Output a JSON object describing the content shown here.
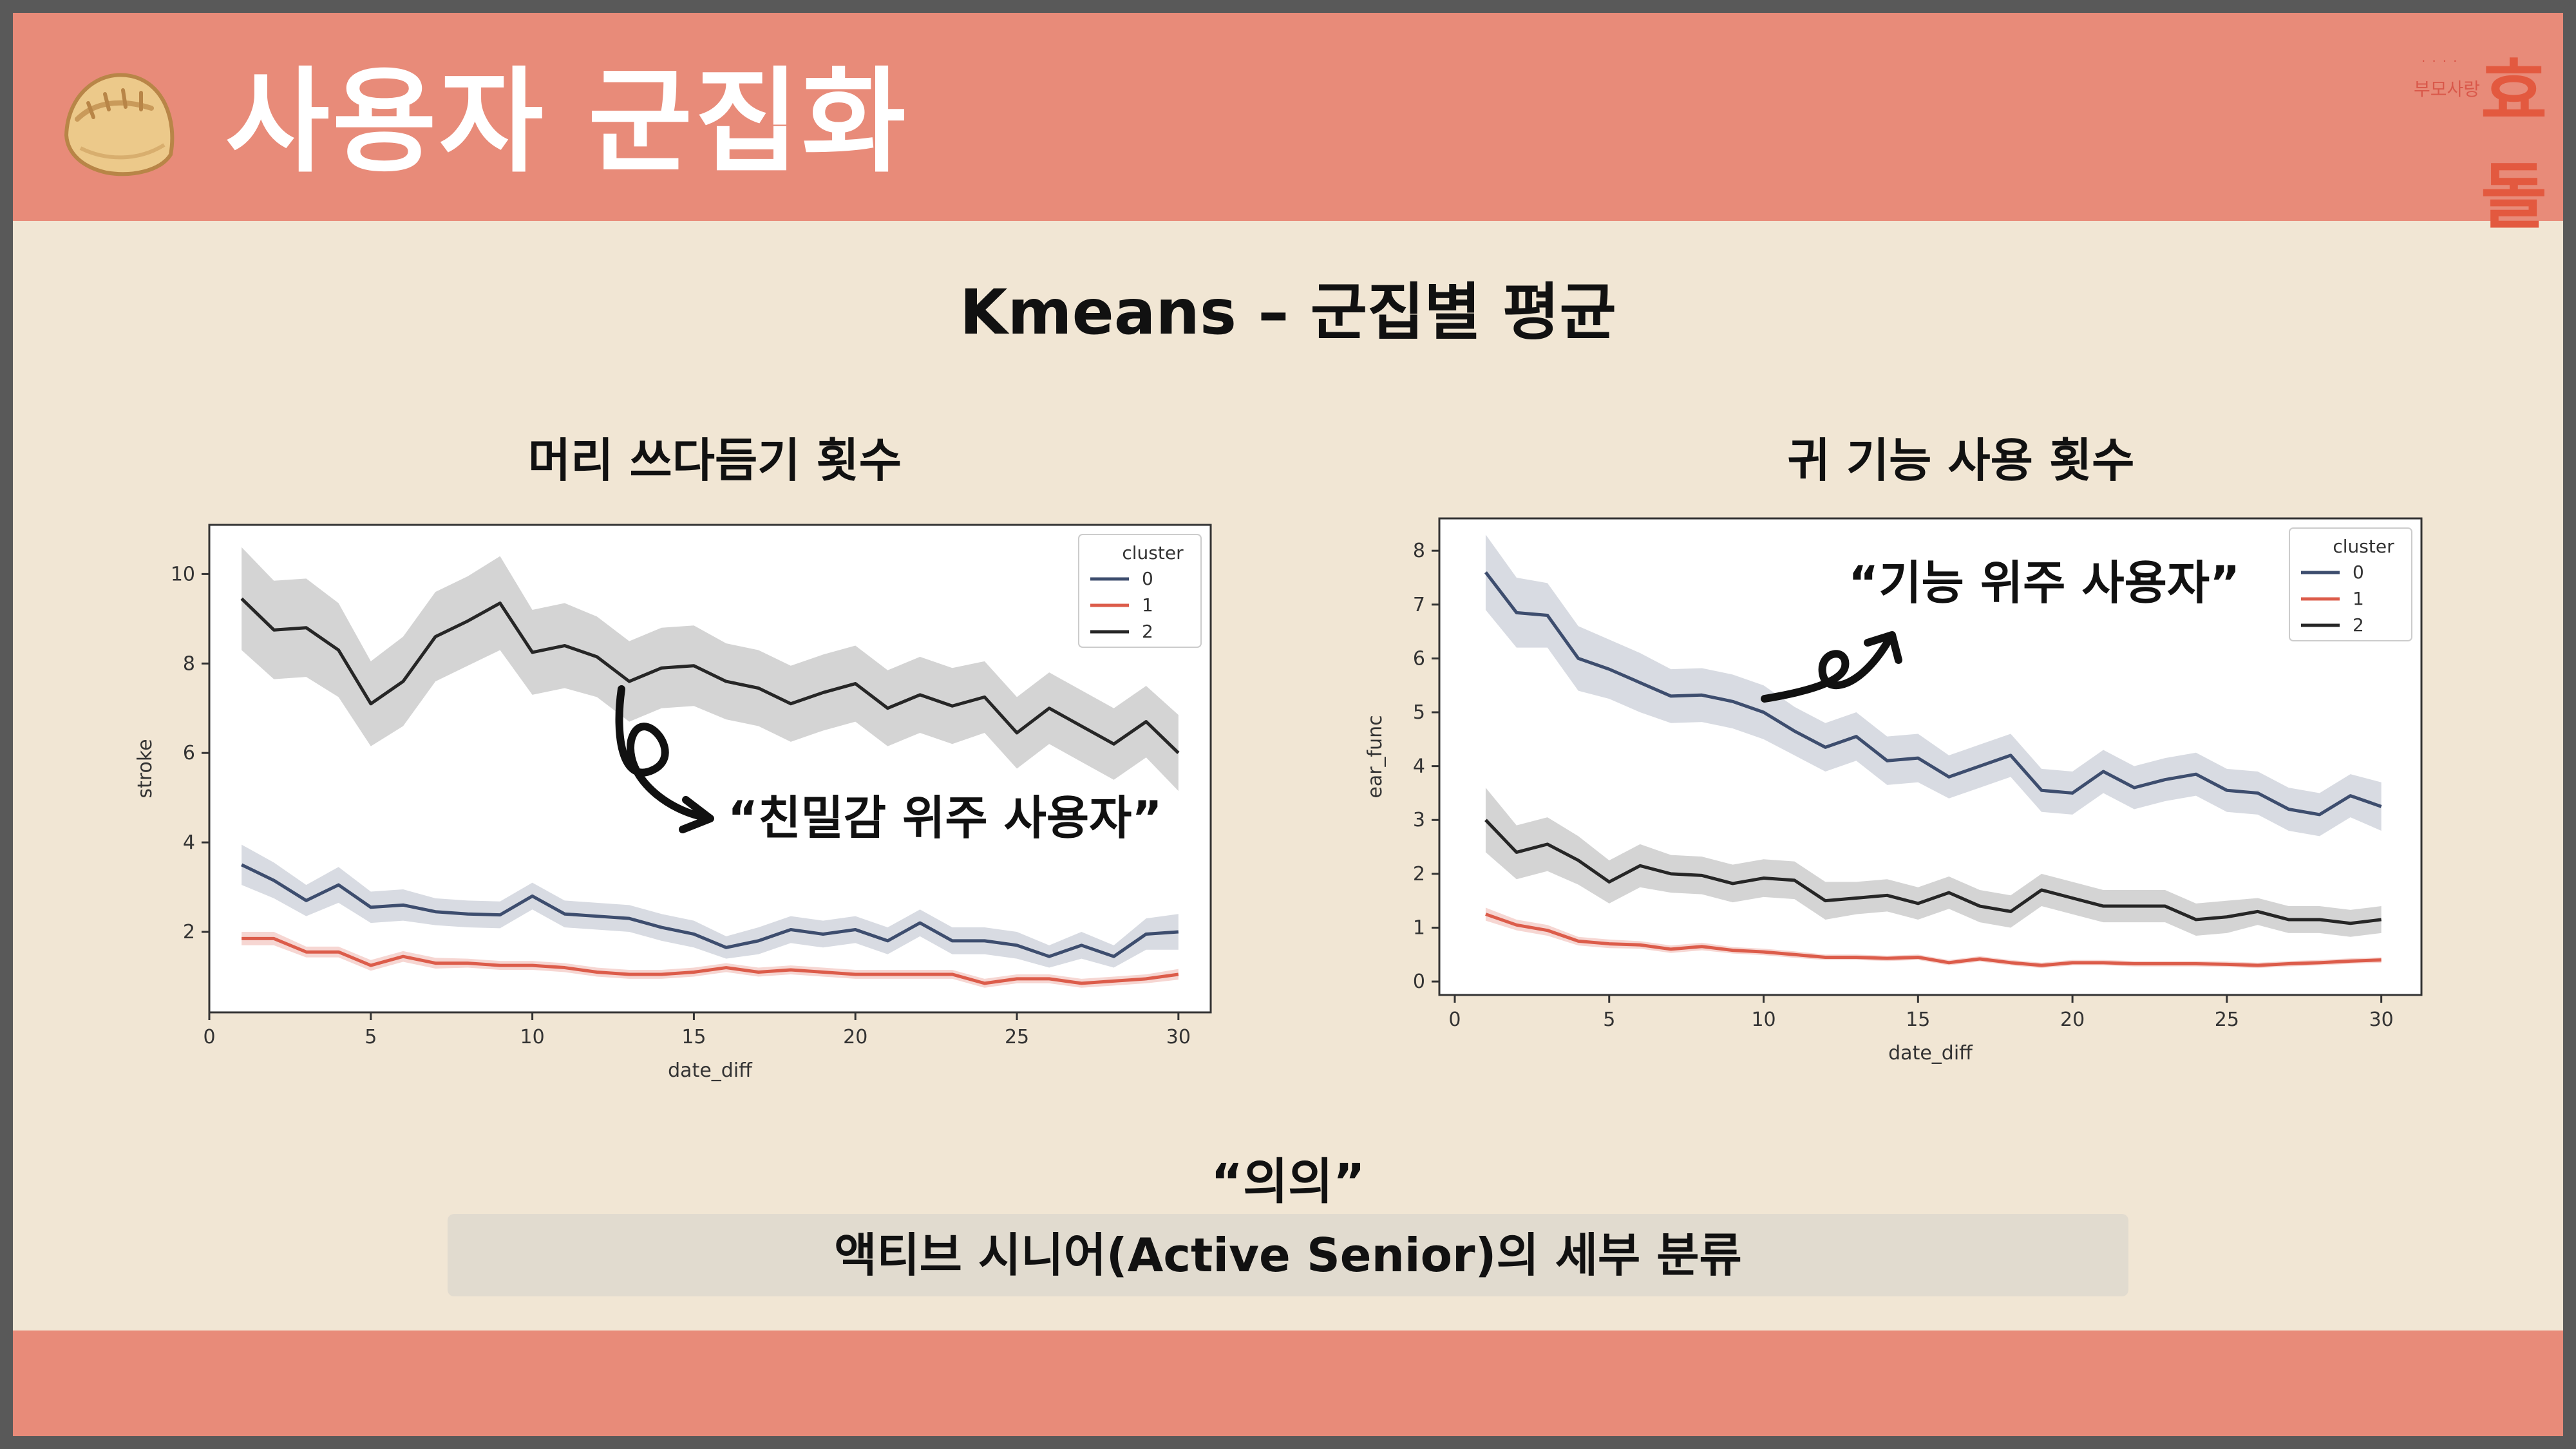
{
  "header": {
    "title": "사용자 군집화",
    "logo": {
      "small_text": "부모사랑",
      "dots": "····",
      "big_text": "효돌"
    }
  },
  "section_title": "Kmeans – 군집별 평균",
  "charts": [
    {
      "heading": "머리 쓰다듬기 횟수",
      "annotation": "“친밀감 위주 사용자”"
    },
    {
      "heading": "귀 기능 사용 횟수",
      "annotation": "“기능 위주 사용자”"
    }
  ],
  "meaning_label": "“의의”",
  "conclusion": "액티브 시니어(Active Senior)의 세부 분류",
  "colors": {
    "header": "#e88b79",
    "background": "#f1e6d4",
    "cluster_0": "#3d4d6e",
    "cluster_1": "#dc5c4a",
    "cluster_2": "#262626"
  },
  "chart_data": [
    {
      "type": "line",
      "xlabel": "date_diff",
      "ylabel": "stroke",
      "xlim": [
        0,
        31
      ],
      "ylim": [
        0.2,
        11.1
      ],
      "xticks": [
        0,
        5,
        10,
        15,
        20,
        25,
        30
      ],
      "yticks": [
        2,
        4,
        6,
        8,
        10
      ],
      "legend": {
        "title": "cluster",
        "position": "top-right"
      },
      "x": [
        1,
        2,
        3,
        4,
        5,
        6,
        7,
        8,
        9,
        10,
        11,
        12,
        13,
        14,
        15,
        16,
        17,
        18,
        19,
        20,
        21,
        22,
        23,
        24,
        25,
        26,
        27,
        28,
        29,
        30
      ],
      "series": [
        {
          "name": "0",
          "values": [
            3.5,
            3.15,
            2.7,
            3.05,
            2.55,
            2.6,
            2.45,
            2.4,
            2.38,
            2.8,
            2.4,
            2.35,
            2.3,
            2.1,
            1.95,
            1.65,
            1.8,
            2.05,
            1.95,
            2.05,
            1.8,
            2.2,
            1.8,
            1.8,
            1.7,
            1.45,
            1.7,
            1.45,
            1.95,
            2.0
          ],
          "band": [
            0.45,
            0.4,
            0.35,
            0.4,
            0.35,
            0.35,
            0.3,
            0.3,
            0.3,
            0.3,
            0.3,
            0.3,
            0.3,
            0.3,
            0.3,
            0.25,
            0.3,
            0.3,
            0.3,
            0.3,
            0.3,
            0.3,
            0.3,
            0.3,
            0.3,
            0.25,
            0.3,
            0.25,
            0.35,
            0.4
          ]
        },
        {
          "name": "1",
          "values": [
            1.85,
            1.85,
            1.55,
            1.55,
            1.25,
            1.45,
            1.3,
            1.3,
            1.25,
            1.25,
            1.2,
            1.1,
            1.05,
            1.05,
            1.1,
            1.2,
            1.1,
            1.15,
            1.1,
            1.05,
            1.05,
            1.05,
            1.05,
            0.85,
            0.95,
            0.95,
            0.85,
            0.9,
            0.95,
            1.05
          ],
          "band": [
            0.15,
            0.15,
            0.12,
            0.12,
            0.12,
            0.12,
            0.12,
            0.1,
            0.1,
            0.1,
            0.1,
            0.1,
            0.1,
            0.1,
            0.1,
            0.1,
            0.1,
            0.1,
            0.1,
            0.1,
            0.1,
            0.1,
            0.1,
            0.1,
            0.1,
            0.1,
            0.1,
            0.1,
            0.1,
            0.12
          ]
        },
        {
          "name": "2",
          "values": [
            9.45,
            8.75,
            8.8,
            8.3,
            7.1,
            7.6,
            8.6,
            8.95,
            9.35,
            8.25,
            8.4,
            8.15,
            7.6,
            7.9,
            7.95,
            7.6,
            7.45,
            7.1,
            7.35,
            7.55,
            7.0,
            7.3,
            7.05,
            7.25,
            6.45,
            7.0,
            6.6,
            6.2,
            6.7,
            6.0
          ],
          "band": [
            1.15,
            1.1,
            1.1,
            1.05,
            0.95,
            1.0,
            1.0,
            1.0,
            1.05,
            0.95,
            0.95,
            0.9,
            0.9,
            0.9,
            0.9,
            0.85,
            0.85,
            0.85,
            0.85,
            0.85,
            0.85,
            0.85,
            0.85,
            0.8,
            0.8,
            0.8,
            0.8,
            0.8,
            0.8,
            0.85
          ]
        }
      ]
    },
    {
      "type": "line",
      "xlabel": "date_diff",
      "ylabel": "ear_func",
      "xlim": [
        -0.5,
        31.3
      ],
      "ylim": [
        -0.25,
        8.6
      ],
      "xticks": [
        0,
        5,
        10,
        15,
        20,
        25,
        30
      ],
      "yticks": [
        0,
        1,
        2,
        3,
        4,
        5,
        6,
        7,
        8
      ],
      "legend": {
        "title": "cluster",
        "position": "top-right"
      },
      "x": [
        1,
        2,
        3,
        4,
        5,
        6,
        7,
        8,
        9,
        10,
        11,
        12,
        13,
        14,
        15,
        16,
        17,
        18,
        19,
        20,
        21,
        22,
        23,
        24,
        25,
        26,
        27,
        28,
        29,
        30
      ],
      "series": [
        {
          "name": "0",
          "values": [
            7.6,
            6.85,
            6.8,
            6.0,
            5.8,
            5.55,
            5.3,
            5.32,
            5.2,
            5.0,
            4.65,
            4.35,
            4.55,
            4.1,
            4.15,
            3.8,
            4.0,
            4.2,
            3.55,
            3.5,
            3.9,
            3.6,
            3.75,
            3.85,
            3.55,
            3.5,
            3.2,
            3.1,
            3.45,
            3.25
          ],
          "band": [
            0.7,
            0.65,
            0.6,
            0.6,
            0.55,
            0.55,
            0.5,
            0.5,
            0.5,
            0.5,
            0.45,
            0.45,
            0.45,
            0.45,
            0.45,
            0.4,
            0.4,
            0.4,
            0.4,
            0.4,
            0.4,
            0.4,
            0.4,
            0.4,
            0.4,
            0.4,
            0.4,
            0.4,
            0.4,
            0.45
          ]
        },
        {
          "name": "1",
          "values": [
            1.25,
            1.05,
            0.95,
            0.75,
            0.7,
            0.68,
            0.6,
            0.65,
            0.58,
            0.55,
            0.5,
            0.45,
            0.45,
            0.43,
            0.45,
            0.35,
            0.42,
            0.35,
            0.3,
            0.35,
            0.35,
            0.33,
            0.33,
            0.33,
            0.32,
            0.3,
            0.33,
            0.35,
            0.38,
            0.4
          ],
          "band": [
            0.12,
            0.1,
            0.1,
            0.08,
            0.08,
            0.07,
            0.07,
            0.07,
            0.06,
            0.06,
            0.06,
            0.05,
            0.05,
            0.05,
            0.05,
            0.05,
            0.05,
            0.05,
            0.05,
            0.05,
            0.05,
            0.05,
            0.05,
            0.05,
            0.05,
            0.05,
            0.05,
            0.05,
            0.05,
            0.05
          ]
        },
        {
          "name": "2",
          "values": [
            3.0,
            2.4,
            2.55,
            2.25,
            1.85,
            2.15,
            2.0,
            1.97,
            1.82,
            1.92,
            1.88,
            1.5,
            1.55,
            1.6,
            1.45,
            1.65,
            1.4,
            1.3,
            1.7,
            1.55,
            1.4,
            1.4,
            1.4,
            1.15,
            1.2,
            1.3,
            1.15,
            1.15,
            1.08,
            1.15
          ],
          "band": [
            0.6,
            0.5,
            0.5,
            0.45,
            0.4,
            0.4,
            0.35,
            0.35,
            0.35,
            0.35,
            0.35,
            0.35,
            0.3,
            0.3,
            0.3,
            0.3,
            0.3,
            0.3,
            0.3,
            0.3,
            0.3,
            0.3,
            0.3,
            0.3,
            0.3,
            0.25,
            0.25,
            0.25,
            0.25,
            0.25
          ]
        }
      ]
    }
  ]
}
